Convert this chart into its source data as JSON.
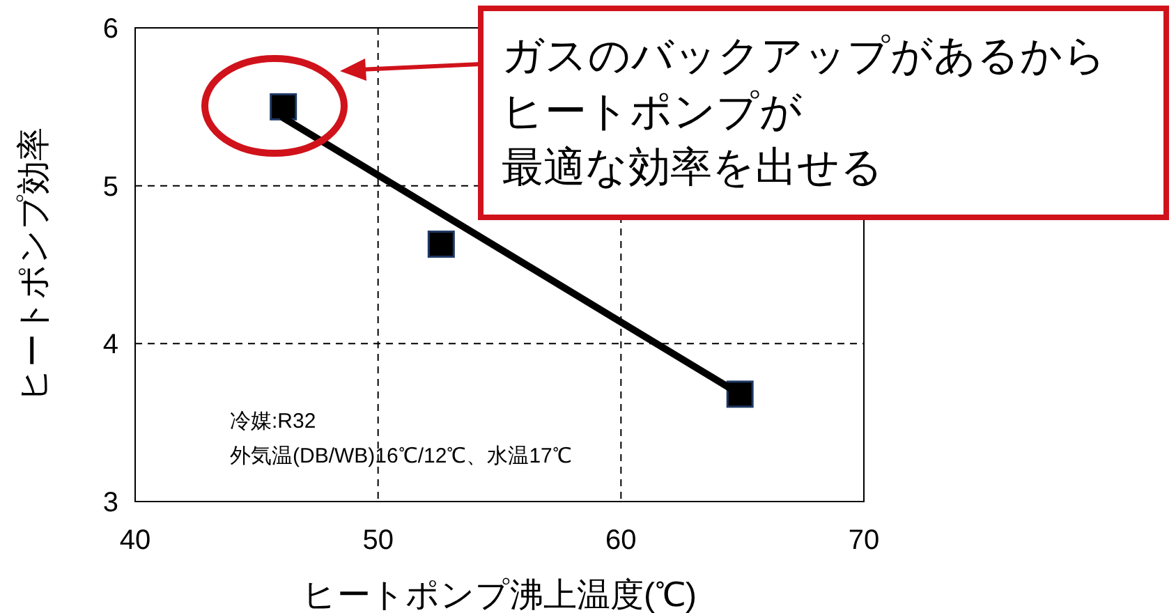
{
  "chart_data": {
    "type": "scatter",
    "xlabel": "ヒートポンプ沸上温度(℃)",
    "ylabel": "ヒートポンプ効率",
    "x": [
      46.1,
      52.6,
      64.9
    ],
    "series": [
      {
        "color": "#000000",
        "values": [
          5.5,
          4.63,
          3.68
        ],
        "marker": "square"
      },
      {
        "type": "line",
        "color": "#000000",
        "x": [
          46.1,
          64.9
        ],
        "values": [
          5.43,
          3.68
        ],
        "marker": "none",
        "line_style": "solid"
      }
    ],
    "xlim": [
      40,
      70
    ],
    "xticks": [
      40,
      50,
      60,
      70
    ],
    "ylim": [
      3,
      6
    ],
    "yticks": [
      3,
      4,
      5,
      6
    ],
    "grid": true,
    "annotations": [
      "ガスのバックアップがあるから",
      "ヒートポンプが",
      "最適な効率を出せる",
      "冷媒:R32",
      "外気温(DB/WB)16℃/12℃、水温17℃"
    ]
  }
}
